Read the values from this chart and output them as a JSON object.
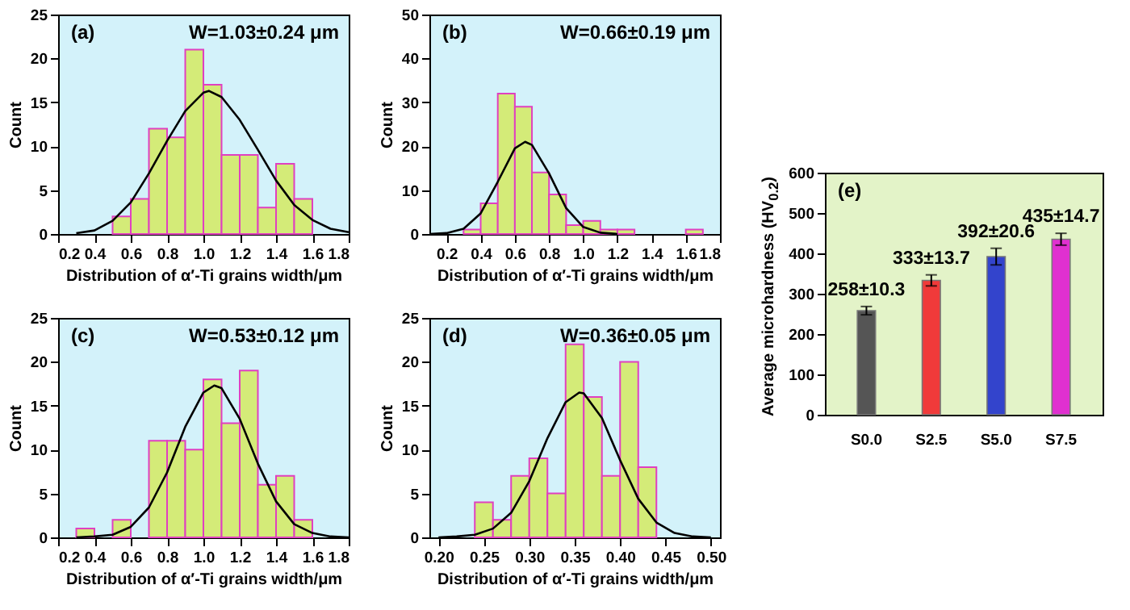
{
  "chart_data": [
    {
      "type": "histogram",
      "xlabel": "Distribution of α′-Ti grains width/μm",
      "ylabel": "Count",
      "annotations": [
        "(a)",
        "W=1.03±0.24 μm"
      ],
      "xlim": [
        0.2,
        1.8
      ],
      "xticks": [
        0.2,
        0.4,
        0.6,
        0.8,
        {
          "value": 1,
          "label": "1.0"
        },
        1.2,
        1.4,
        1.6,
        1.8
      ],
      "ylim": [
        0,
        25
      ],
      "yticks": [
        0,
        5,
        10,
        15,
        20,
        25
      ],
      "bins": [
        0.5,
        0.6,
        0.7,
        0.8,
        0.9,
        1.0,
        1.1,
        1.2,
        1.3,
        1.4,
        1.5,
        1.6
      ],
      "series": [
        {
          "type": "histogram",
          "color": "#d4eb78",
          "values": [
            2,
            4,
            12,
            11,
            21,
            17,
            9,
            9,
            3,
            8,
            4
          ]
        },
        {
          "type": "line",
          "color": "#000000",
          "x": [
            0.3,
            0.4,
            0.5,
            0.6,
            0.7,
            0.8,
            0.9,
            1.0,
            1.03,
            1.1,
            1.2,
            1.3,
            1.4,
            1.5,
            1.6,
            1.7,
            1.8
          ],
          "values": [
            0.1,
            0.4,
            1.5,
            3.6,
            6.9,
            10.6,
            14,
            16.1,
            16.3,
            15.6,
            13,
            9.6,
            6.1,
            3.3,
            1.6,
            0.6,
            0.2
          ]
        }
      ]
    },
    {
      "type": "histogram",
      "xlabel": "Distribution of α′-Ti grains width/μm",
      "ylabel": "Count",
      "annotations": [
        "(b)",
        "W=0.66±0.19 μm"
      ],
      "xlim": [
        0.1,
        1.8
      ],
      "xticks": [
        0.2,
        0.4,
        0.6,
        0.8,
        {
          "value": 1,
          "label": "1.0"
        },
        1.2,
        1.4,
        1.6,
        1.8
      ],
      "ylim": [
        0,
        50
      ],
      "yticks": [
        0,
        10,
        20,
        30,
        40,
        50
      ],
      "bins": [
        0.3,
        0.4,
        0.5,
        0.6,
        0.7,
        0.8,
        0.9,
        1.0,
        1.1,
        1.2,
        1.3,
        1.4,
        1.5,
        1.6,
        1.7
      ],
      "series": [
        {
          "type": "histogram",
          "color": "#d4eb78",
          "values": [
            1,
            7,
            32,
            29,
            14,
            9,
            2,
            3,
            1,
            1,
            0,
            0,
            0,
            1
          ]
        },
        {
          "type": "line",
          "color": "#000000",
          "x": [
            0.1,
            0.2,
            0.3,
            0.4,
            0.5,
            0.6,
            0.66,
            0.7,
            0.8,
            0.9,
            1.0,
            1.1,
            1.2
          ],
          "values": [
            0,
            0.2,
            1.2,
            4.7,
            11.9,
            19.5,
            21,
            20.3,
            13.8,
            5.9,
            1.6,
            0.3,
            0
          ]
        }
      ]
    },
    {
      "type": "histogram",
      "xlabel": "Distribution of α′-Ti grains width/μm",
      "ylabel": "Count",
      "annotations": [
        "(c)",
        "W=0.53±0.12 μm"
      ],
      "xlim": [
        0.2,
        1.8
      ],
      "xticks": [
        0.2,
        0.4,
        0.6,
        0.8,
        {
          "value": 1,
          "label": "1.0"
        },
        1.2,
        1.4,
        1.6,
        1.8
      ],
      "ylim": [
        0,
        25
      ],
      "yticks": [
        0,
        5,
        10,
        15,
        20,
        25
      ],
      "bins": [
        0.3,
        0.4,
        0.5,
        0.6,
        0.7,
        0.8,
        0.9,
        1.0,
        1.1,
        1.2,
        1.3,
        1.4,
        1.5,
        1.6
      ],
      "series": [
        {
          "type": "histogram",
          "color": "#d4eb78",
          "values": [
            1,
            0,
            2,
            0,
            11,
            11,
            10,
            18,
            13,
            19,
            6,
            7,
            2
          ]
        },
        {
          "type": "line",
          "color": "#000000",
          "x": [
            0.3,
            0.4,
            0.5,
            0.6,
            0.7,
            0.8,
            0.9,
            1.0,
            1.06,
            1.1,
            1.2,
            1.3,
            1.4,
            1.5,
            1.6,
            1.7,
            1.8
          ],
          "values": [
            0,
            0.1,
            0.3,
            1.2,
            3.4,
            7.4,
            12.6,
            16.5,
            17.3,
            17,
            13.5,
            8.4,
            4.1,
            1.5,
            0.5,
            0.1,
            0
          ]
        }
      ]
    },
    {
      "type": "histogram",
      "xlabel": "Distribution of α′-Ti grains width/μm",
      "ylabel": "Count",
      "annotations": [
        "(d)",
        "W=0.36±0.05 μm"
      ],
      "xlim": [
        0.19,
        0.51
      ],
      "xticks": [
        {
          "value": 0.2,
          "label": "0.20"
        },
        {
          "value": 0.25,
          "label": "0.25"
        },
        {
          "value": 0.3,
          "label": "0.30"
        },
        {
          "value": 0.35,
          "label": "0.35"
        },
        {
          "value": 0.4,
          "label": "0.40"
        },
        {
          "value": 0.45,
          "label": "0.45"
        },
        {
          "value": 0.5,
          "label": "0.50"
        }
      ],
      "ylim": [
        0,
        25
      ],
      "yticks": [
        0,
        5,
        10,
        15,
        20,
        25
      ],
      "bins": [
        0.24,
        0.26,
        0.28,
        0.3,
        0.32,
        0.34,
        0.36,
        0.38,
        0.4,
        0.42,
        0.44
      ],
      "series": [
        {
          "type": "histogram",
          "color": "#d4eb78",
          "values": [
            4,
            2,
            7,
            9,
            5,
            22,
            16,
            7,
            20,
            8
          ]
        },
        {
          "type": "line",
          "color": "#000000",
          "x": [
            0.2,
            0.22,
            0.24,
            0.26,
            0.28,
            0.3,
            0.32,
            0.34,
            0.355,
            0.36,
            0.38,
            0.4,
            0.42,
            0.44,
            0.46,
            0.48,
            0.5
          ],
          "values": [
            0,
            0.1,
            0.3,
            1,
            2.8,
            6.4,
            11.3,
            15.4,
            16.5,
            16.4,
            13.6,
            8.8,
            4.4,
            1.7,
            0.5,
            0.1,
            0
          ]
        }
      ]
    },
    {
      "type": "bar",
      "ylabel": "Average microhardness (HV$_{0.2}$)",
      "annotations": [
        "(e)"
      ],
      "categories": [
        "S0.0",
        "S2.5",
        "S5.0",
        "S7.5"
      ],
      "values": [
        258,
        333,
        392,
        435
      ],
      "errors": [
        10.3,
        13.7,
        20.6,
        14.7
      ],
      "value_labels": [
        "258±10.3",
        "333±13.7",
        "392±20.6",
        "435±14.7"
      ],
      "colors": [
        "#555555",
        "#f03a3a",
        "#3344cc",
        "#e030d0"
      ],
      "ylim": [
        0,
        600
      ],
      "yticks": [
        0,
        100,
        200,
        300,
        400,
        500,
        600
      ]
    }
  ]
}
